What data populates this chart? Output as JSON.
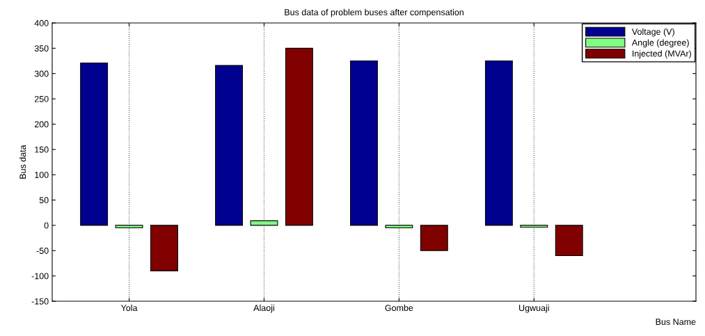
{
  "chart_data": {
    "type": "bar",
    "title": "Bus data of problem buses after compensation",
    "xlabel": "Bus Name",
    "ylabel": "Bus data",
    "categories": [
      "Yola",
      "Alaoji",
      "Gombe",
      "Ugwuaji"
    ],
    "series": [
      {
        "name": "Voltage (V)",
        "color": "#00008f",
        "values": [
          321,
          316,
          325,
          325
        ]
      },
      {
        "name": "Angle (degree)",
        "color": "#80ff80",
        "values": [
          -5,
          9,
          -5,
          -4
        ]
      },
      {
        "name": "Injected (MVAr)",
        "color": "#800000",
        "values": [
          -90,
          350,
          -50,
          -60
        ]
      }
    ],
    "ylim": [
      -150,
      400
    ],
    "yticks": [
      -150,
      -100,
      -50,
      0,
      50,
      100,
      150,
      200,
      250,
      300,
      350,
      400
    ],
    "grid": "x",
    "legend": "top right"
  }
}
